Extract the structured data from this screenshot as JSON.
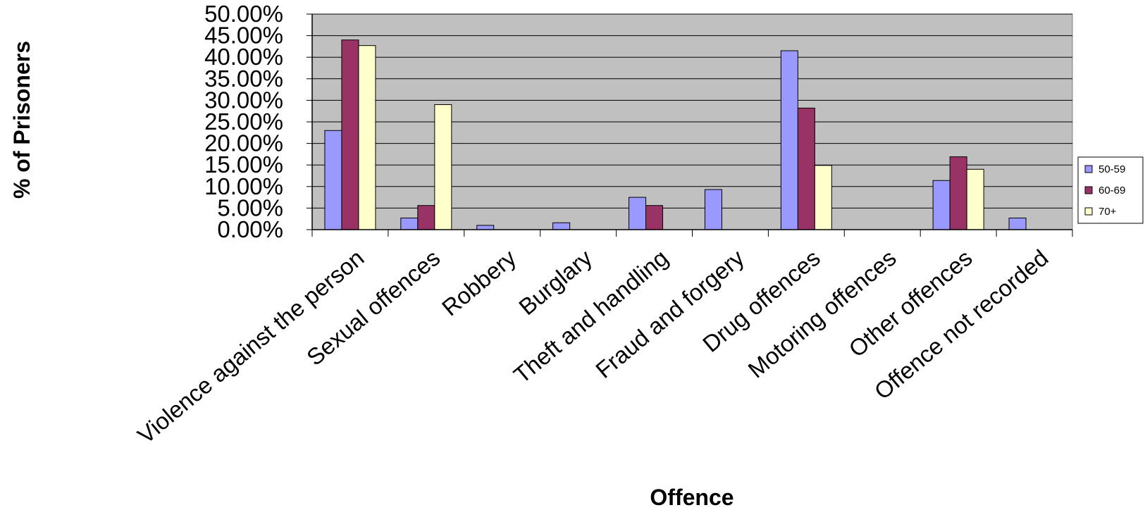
{
  "chart_data": {
    "type": "bar",
    "title": "",
    "xlabel": "Offence",
    "ylabel": "% of Prisoners",
    "ylim": [
      0,
      50
    ],
    "ytick_step": 5,
    "ytick_labels": [
      "0.00%",
      "5.00%",
      "10.00%",
      "15.00%",
      "20.00%",
      "25.00%",
      "30.00%",
      "35.00%",
      "40.00%",
      "45.00%",
      "50.00%"
    ],
    "grid": true,
    "legend_position": "right",
    "categories": [
      "Violence against the person",
      "Sexual offences",
      "Robbery",
      "Burglary",
      "Theft and handling",
      "Fraud and forgery",
      "Drug offences",
      "Motoring offences",
      "Other offences",
      "Offence not recorded"
    ],
    "series": [
      {
        "name": "50-59",
        "color": "#9999ff",
        "values": [
          23.0,
          2.7,
          1.0,
          1.6,
          7.5,
          9.3,
          41.5,
          0,
          11.4,
          2.7
        ]
      },
      {
        "name": "60-69",
        "color": "#993366",
        "values": [
          44.0,
          5.6,
          0,
          0,
          5.6,
          0,
          28.2,
          0,
          16.9,
          0
        ]
      },
      {
        "name": "70+",
        "color": "#ffffcc",
        "values": [
          42.7,
          29.0,
          0,
          0,
          0,
          0,
          14.9,
          0,
          14.0,
          0
        ]
      }
    ],
    "plot_background": "#c0c0c0"
  }
}
